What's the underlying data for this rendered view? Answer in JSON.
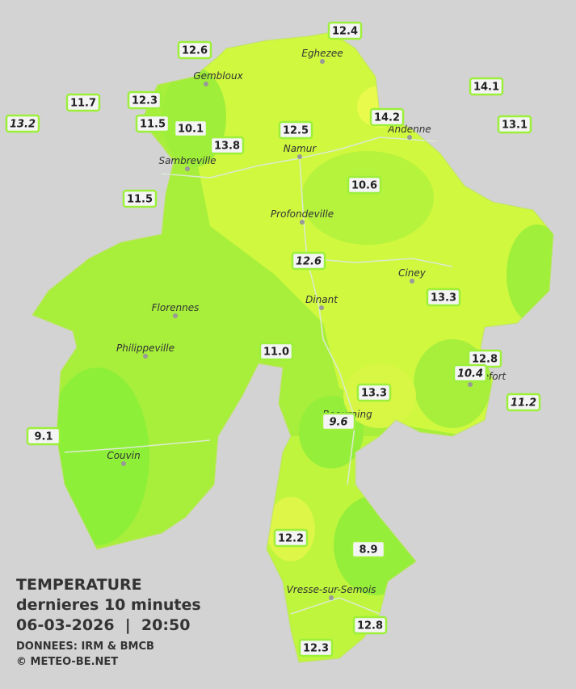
{
  "title": {
    "line1": "TEMPERATURE",
    "line2": "dernieres 10 minutes",
    "line3": "06-03-2026  |  20:50",
    "source": "DONNEES: IRM & BMCB",
    "copyright": "© METEO-BE.NET"
  },
  "cities": [
    {
      "name": "Eghezee"
    },
    {
      "name": "Gembloux"
    },
    {
      "name": "Andenne"
    },
    {
      "name": "Namur"
    },
    {
      "name": "Sambreville"
    },
    {
      "name": "Profondeville"
    },
    {
      "name": "Ciney"
    },
    {
      "name": "Dinant"
    },
    {
      "name": "Florennes"
    },
    {
      "name": "Philippeville"
    },
    {
      "name": "Rochefort"
    },
    {
      "name": "Beauraing"
    },
    {
      "name": "Couvin"
    },
    {
      "name": "Vresse-sur-Semois"
    }
  ],
  "stations": [
    {
      "label": "12.4"
    },
    {
      "label": "12.6"
    },
    {
      "label": "11.7"
    },
    {
      "label": "12.3"
    },
    {
      "label": "14.1"
    },
    {
      "label": "13.2"
    },
    {
      "label": "11.5"
    },
    {
      "label": "10.1"
    },
    {
      "label": "12.5"
    },
    {
      "label": "14.2"
    },
    {
      "label": "13.1"
    },
    {
      "label": "13.8"
    },
    {
      "label": "10.6"
    },
    {
      "label": "11.5"
    },
    {
      "label": "12.6"
    },
    {
      "label": "13.3"
    },
    {
      "label": "11.0"
    },
    {
      "label": "12.8"
    },
    {
      "label": "10.4"
    },
    {
      "label": "11.2"
    },
    {
      "label": "13.3"
    },
    {
      "label": "9.6"
    },
    {
      "label": "9.1"
    },
    {
      "label": "12.2"
    },
    {
      "label": "8.9"
    },
    {
      "label": "12.8"
    },
    {
      "label": "12.3"
    }
  ]
}
